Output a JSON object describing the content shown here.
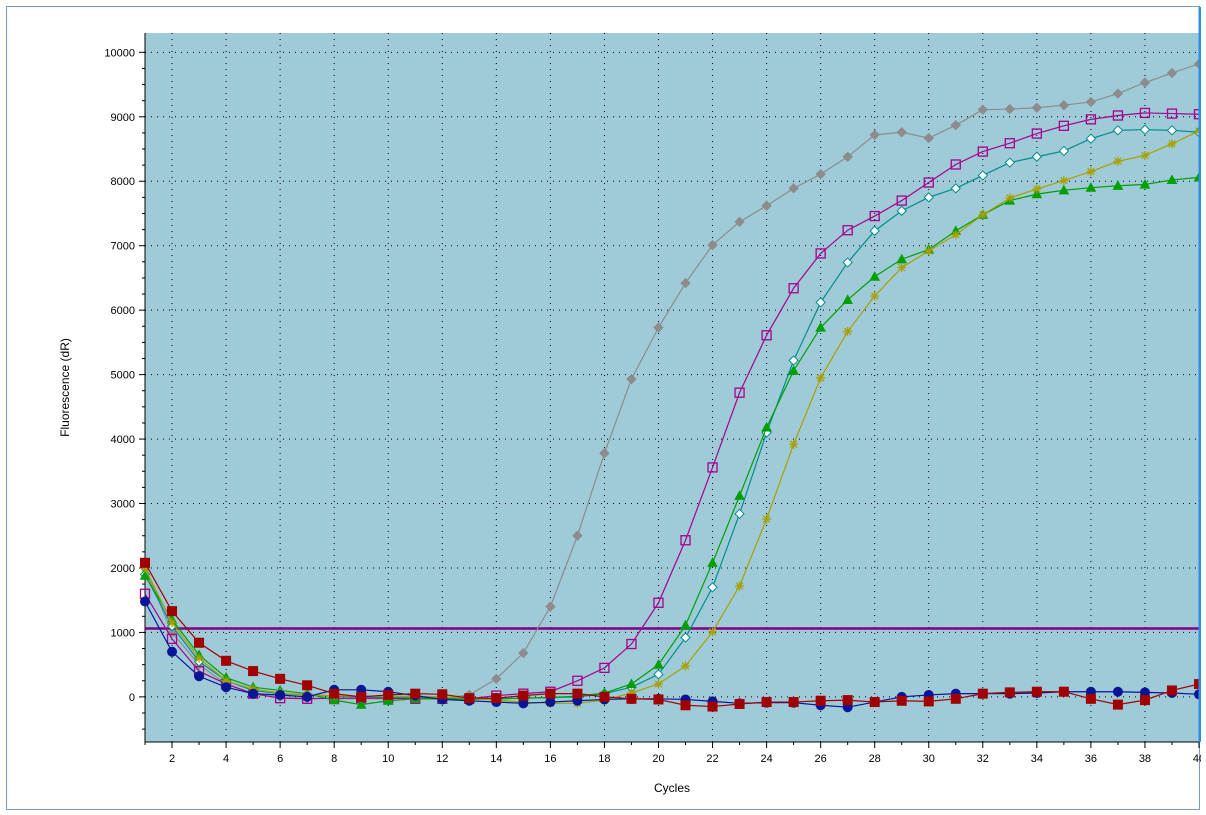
{
  "chart_data": {
    "type": "line",
    "xlabel": "Cycles",
    "ylabel": "Fluorescence (dR)",
    "xlim": [
      1,
      40
    ],
    "ylim": [
      -700,
      10300
    ],
    "x_ticks": [
      2,
      4,
      6,
      8,
      10,
      12,
      14,
      16,
      18,
      20,
      22,
      24,
      26,
      28,
      30,
      32,
      34,
      36,
      38,
      40
    ],
    "y_ticks": [
      0,
      1000,
      2000,
      3000,
      4000,
      5000,
      6000,
      7000,
      8000,
      9000,
      10000
    ],
    "grid": true,
    "threshold": {
      "value": 1060,
      "color": "#800080"
    },
    "background_color": "#9fcbd9",
    "x": [
      1,
      2,
      3,
      4,
      5,
      6,
      7,
      8,
      9,
      10,
      11,
      12,
      13,
      14,
      15,
      16,
      17,
      18,
      19,
      20,
      21,
      22,
      23,
      24,
      25,
      26,
      27,
      28,
      29,
      30,
      31,
      32,
      33,
      34,
      35,
      36,
      37,
      38,
      39,
      40
    ],
    "series": [
      {
        "color": "#8c8c8c",
        "marker": "filled-diamond",
        "values": [
          2000,
          1000,
          500,
          200,
          50,
          0,
          -20,
          -30,
          -30,
          -30,
          -20,
          -20,
          30,
          280,
          680,
          1400,
          2500,
          3780,
          4930,
          5730,
          6420,
          7010,
          7370,
          7620,
          7890,
          8110,
          8380,
          8720,
          8760,
          8670,
          8870,
          9110,
          9120,
          9140,
          9180,
          9230,
          9360,
          9530,
          9680,
          9820
        ]
      },
      {
        "color": "#a6008c",
        "marker": "open-square",
        "values": [
          1600,
          900,
          400,
          200,
          50,
          -20,
          -30,
          -20,
          -20,
          -20,
          -30,
          -30,
          -30,
          20,
          50,
          80,
          250,
          450,
          820,
          1460,
          2430,
          3560,
          4720,
          5610,
          6340,
          6880,
          7240,
          7460,
          7700,
          7980,
          8260,
          8460,
          8590,
          8740,
          8860,
          8960,
          9020,
          9060,
          9050,
          9040
        ]
      },
      {
        "color": "#008c8c",
        "marker": "open-diamond",
        "values": [
          1900,
          1100,
          550,
          250,
          100,
          50,
          30,
          10,
          0,
          -10,
          0,
          -20,
          -30,
          -30,
          -20,
          -10,
          0,
          50,
          150,
          350,
          920,
          1700,
          2840,
          4100,
          5220,
          6120,
          6740,
          7230,
          7540,
          7750,
          7890,
          8090,
          8290,
          8380,
          8470,
          8660,
          8790,
          8800,
          8790,
          8760
        ]
      },
      {
        "color": "#00a000",
        "marker": "filled-triangle",
        "values": [
          1880,
          1200,
          650,
          300,
          150,
          100,
          50,
          -50,
          -120,
          -60,
          -30,
          -30,
          -40,
          -30,
          -20,
          -10,
          10,
          60,
          200,
          500,
          1110,
          2080,
          3120,
          4180,
          5060,
          5730,
          6160,
          6520,
          6790,
          6940,
          7230,
          7480,
          7700,
          7800,
          7860,
          7900,
          7930,
          7950,
          8020,
          8060
        ]
      },
      {
        "color": "#a8a000",
        "marker": "asterisk",
        "values": [
          2000,
          1150,
          600,
          250,
          120,
          60,
          30,
          20,
          10,
          10,
          10,
          0,
          -20,
          -50,
          -80,
          -100,
          -100,
          -50,
          60,
          200,
          480,
          1010,
          1720,
          2760,
          3920,
          4950,
          5670,
          6220,
          6660,
          6920,
          7170,
          7480,
          7740,
          7880,
          8010,
          8150,
          8310,
          8400,
          8580,
          8780
        ]
      },
      {
        "color": "#0a1496",
        "marker": "filled-circle",
        "values": [
          1480,
          700,
          320,
          150,
          50,
          30,
          0,
          110,
          110,
          80,
          20,
          -40,
          -60,
          -80,
          -100,
          -80,
          -60,
          -40,
          -30,
          -30,
          -40,
          -70,
          -100,
          -90,
          -90,
          -130,
          -160,
          -80,
          0,
          30,
          50,
          50,
          50,
          60,
          80,
          80,
          80,
          70,
          60,
          40
        ]
      },
      {
        "color": "#a00000",
        "marker": "filled-square",
        "values": [
          2080,
          1330,
          840,
          560,
          400,
          280,
          180,
          50,
          0,
          30,
          50,
          40,
          -20,
          -20,
          20,
          50,
          50,
          0,
          -30,
          -40,
          -130,
          -150,
          -110,
          -80,
          -80,
          -60,
          -50,
          -80,
          -60,
          -70,
          -30,
          50,
          70,
          80,
          80,
          -30,
          -120,
          -50,
          100,
          200
        ]
      }
    ]
  }
}
